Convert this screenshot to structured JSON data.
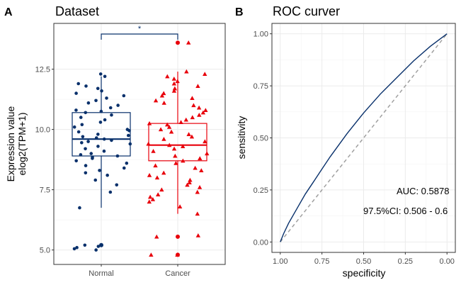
{
  "panels": {
    "a_letter": "A",
    "b_letter": "B"
  },
  "chart_data": [
    {
      "type": "box",
      "title": "Dataset",
      "ylabel_line1": "Expression value",
      "ylabel_line2": "elog2(TPM+1)",
      "xlabel": "",
      "categories": [
        "Normal",
        "Cancer"
      ],
      "yticks": [
        "5.0",
        "7.5",
        "10.0",
        "12.5"
      ],
      "ytick_values": [
        5.0,
        7.5,
        10.0,
        12.5
      ],
      "ylim": [
        4.4,
        14.4
      ],
      "grid": true,
      "significance": "*",
      "boxes": [
        {
          "category": "Normal",
          "min": 6.75,
          "q1": 8.9,
          "median": 9.6,
          "q3": 10.7,
          "max": 12.2,
          "outliers": [
            5.2
          ],
          "color": "#08306b",
          "marker": "circle"
        },
        {
          "category": "Cancer",
          "min": 6.5,
          "q1": 8.7,
          "median": 9.35,
          "q3": 10.25,
          "max": 12.4,
          "outliers": [
            13.6,
            5.55,
            4.8
          ],
          "color": "#e8000b",
          "marker": "triangle"
        }
      ],
      "jitter": [
        {
          "category": "Normal",
          "values": [
            12.3,
            12.2,
            11.9,
            11.8,
            11.7,
            11.6,
            11.5,
            11.4,
            11.3,
            11.2,
            11.1,
            11.0,
            10.9,
            10.8,
            10.75,
            10.7,
            10.6,
            10.5,
            10.4,
            10.3,
            10.2,
            10.1,
            10.0,
            9.95,
            9.9,
            9.8,
            9.75,
            9.7,
            9.65,
            9.6,
            9.55,
            9.5,
            9.45,
            9.4,
            9.3,
            9.2,
            9.1,
            9.0,
            8.95,
            8.9,
            8.85,
            8.8,
            8.7,
            8.6,
            8.5,
            8.4,
            8.3,
            8.2,
            8.1,
            7.9,
            7.7,
            7.4,
            6.75,
            5.2,
            5.15,
            5.1,
            5.05,
            5.0
          ],
          "marker": "circle",
          "color": "#08306b"
        },
        {
          "category": "Cancer",
          "values": [
            13.6,
            12.4,
            12.3,
            12.2,
            12.1,
            12.0,
            11.9,
            11.8,
            11.7,
            11.6,
            11.5,
            11.4,
            11.3,
            11.2,
            11.1,
            11.0,
            10.9,
            10.8,
            10.7,
            10.6,
            10.5,
            10.4,
            10.3,
            10.25,
            10.2,
            10.1,
            10.0,
            9.9,
            9.8,
            9.7,
            9.6,
            9.5,
            9.4,
            9.35,
            9.3,
            9.2,
            9.1,
            9.0,
            8.9,
            8.8,
            8.7,
            8.6,
            8.5,
            8.4,
            8.3,
            8.2,
            8.1,
            8.0,
            7.9,
            7.8,
            7.7,
            7.6,
            7.5,
            7.4,
            7.3,
            7.2,
            7.1,
            7.0,
            6.8,
            6.5,
            5.6,
            5.55,
            4.8,
            4.8
          ],
          "marker": "triangle",
          "color": "#e8000b"
        }
      ]
    },
    {
      "type": "line",
      "title": "ROC curver",
      "xlabel": "specificity",
      "ylabel": "sensitivity",
      "xticks": [
        "1.00",
        "0.75",
        "0.50",
        "0.25",
        "0.00"
      ],
      "xtick_values": [
        1.0,
        0.75,
        0.5,
        0.25,
        0.0
      ],
      "yticks": [
        "0.00",
        "0.25",
        "0.50",
        "0.75",
        "1.00"
      ],
      "ytick_values": [
        0.0,
        0.25,
        0.5,
        0.75,
        1.0
      ],
      "xlim": [
        1.05,
        -0.05
      ],
      "ylim": [
        -0.05,
        1.05
      ],
      "x_reversed": true,
      "grid": true,
      "series": [
        {
          "color": "#08306b",
          "x": [
            1.0,
            0.98,
            0.95,
            0.9,
            0.85,
            0.8,
            0.75,
            0.7,
            0.6,
            0.5,
            0.4,
            0.3,
            0.2,
            0.1,
            0.0
          ],
          "y": [
            0.0,
            0.04,
            0.09,
            0.16,
            0.23,
            0.29,
            0.35,
            0.41,
            0.52,
            0.62,
            0.71,
            0.79,
            0.87,
            0.94,
            1.0
          ]
        }
      ],
      "reference_line": {
        "color": "#a0a0a0",
        "x": [
          1.0,
          0.0
        ],
        "y": [
          0.0,
          1.0
        ],
        "dashed": true
      },
      "annotations": {
        "auc": "AUC: 0.5878",
        "ci": "97.5%CI: 0.506 - 0.6"
      }
    }
  ]
}
